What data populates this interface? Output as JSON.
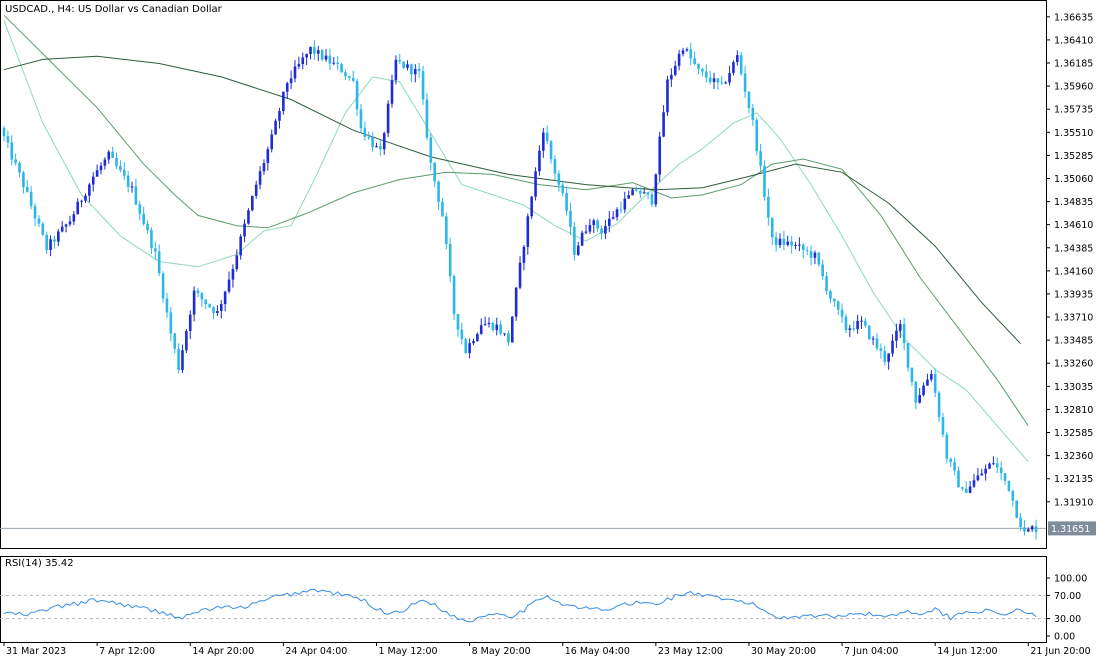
{
  "header": {
    "symbol_label": "USDCAD., H4:  US Dollar vs Canadian Dollar"
  },
  "colors": {
    "bull_candle": "#1e2bd6",
    "bear_candle": "#2bb7e8",
    "ma_fast": "#8fd9b6",
    "ma_mid": "#5c9c6a",
    "ma_slow": "#2f5c3a",
    "rsi_line": "#3a8ee6",
    "price_tag_bg": "#7f8c9a",
    "axis_text": "#000000"
  },
  "chart_data": [
    {
      "type": "candlestick",
      "title": "USDCAD., H4:  US Dollar vs Canadian Dollar",
      "y_ticks": [
        "1.36635",
        "1.36410",
        "1.36185",
        "1.35960",
        "1.35735",
        "1.35510",
        "1.35285",
        "1.35060",
        "1.34835",
        "1.34610",
        "1.34385",
        "1.34160",
        "1.33935",
        "1.33710",
        "1.33485",
        "1.33260",
        "1.33035",
        "1.32810",
        "1.32585",
        "1.32360",
        "1.32135",
        "1.31910"
      ],
      "ylim": [
        1.3146,
        1.3676
      ],
      "x_tick_labels": [
        "31 Mar 2023",
        "7 Apr 12:00",
        "14 Apr 20:00",
        "24 Apr 04:00",
        "1 May 12:00",
        "8 May 20:00",
        "16 May 04:00",
        "23 May 12:00",
        "30 May 20:00",
        "7 Jun 04:00",
        "14 Jun 12:00",
        "21 Jun 20:00"
      ],
      "x_tick_bars": [
        0,
        24,
        48,
        72,
        96,
        120,
        144,
        168,
        192,
        216,
        240,
        264
      ],
      "current_price": "1.31651",
      "current_price_value": 1.31651,
      "price_path": [
        [
          0,
          1.3555
        ],
        [
          6,
          1.35
        ],
        [
          12,
          1.3438
        ],
        [
          18,
          1.3465
        ],
        [
          24,
          1.3508
        ],
        [
          28,
          1.3528
        ],
        [
          34,
          1.3495
        ],
        [
          40,
          1.3432
        ],
        [
          44,
          1.3355
        ],
        [
          46,
          1.3322
        ],
        [
          50,
          1.3395
        ],
        [
          56,
          1.3375
        ],
        [
          60,
          1.342
        ],
        [
          66,
          1.35
        ],
        [
          70,
          1.3545
        ],
        [
          74,
          1.36
        ],
        [
          80,
          1.3632
        ],
        [
          88,
          1.3612
        ],
        [
          91,
          1.36
        ],
        [
          93,
          1.3555
        ],
        [
          98,
          1.353
        ],
        [
          102,
          1.362
        ],
        [
          108,
          1.3608
        ],
        [
          111,
          1.352
        ],
        [
          114,
          1.347
        ],
        [
          117,
          1.3375
        ],
        [
          120,
          1.3338
        ],
        [
          124,
          1.3365
        ],
        [
          128,
          1.3362
        ],
        [
          131,
          1.3348
        ],
        [
          134,
          1.342
        ],
        [
          137,
          1.349
        ],
        [
          140,
          1.3555
        ],
        [
          142,
          1.3525
        ],
        [
          146,
          1.3475
        ],
        [
          148,
          1.3435
        ],
        [
          152,
          1.3465
        ],
        [
          155,
          1.3455
        ],
        [
          160,
          1.348
        ],
        [
          164,
          1.3495
        ],
        [
          168,
          1.3485
        ],
        [
          172,
          1.36
        ],
        [
          176,
          1.3635
        ],
        [
          180,
          1.361
        ],
        [
          186,
          1.3595
        ],
        [
          190,
          1.3625
        ],
        [
          194,
          1.356
        ],
        [
          199,
          1.3445
        ],
        [
          204,
          1.3442
        ],
        [
          210,
          1.343
        ],
        [
          214,
          1.339
        ],
        [
          218,
          1.336
        ],
        [
          222,
          1.3365
        ],
        [
          228,
          1.333
        ],
        [
          232,
          1.3362
        ],
        [
          236,
          1.329
        ],
        [
          240,
          1.3318
        ],
        [
          244,
          1.3235
        ],
        [
          248,
          1.32
        ],
        [
          252,
          1.3215
        ],
        [
          256,
          1.323
        ],
        [
          260,
          1.3205
        ],
        [
          262,
          1.318
        ],
        [
          264,
          1.316
        ],
        [
          266,
          1.3165
        ]
      ],
      "series": [
        {
          "name": "",
          "kind": "moving-average",
          "values": [
            [
              0,
              1.366
            ],
            [
              10,
              1.356
            ],
            [
              20,
              1.349
            ],
            [
              30,
              1.345
            ],
            [
              40,
              1.3425
            ],
            [
              50,
              1.342
            ],
            [
              60,
              1.3432
            ],
            [
              67,
              1.3455
            ],
            [
              74,
              1.346
            ],
            [
              80,
              1.3505
            ],
            [
              88,
              1.357
            ],
            [
              95,
              1.3605
            ],
            [
              102,
              1.36
            ],
            [
              110,
              1.355
            ],
            [
              118,
              1.35
            ],
            [
              126,
              1.349
            ],
            [
              134,
              1.348
            ],
            [
              142,
              1.346
            ],
            [
              150,
              1.3445
            ],
            [
              158,
              1.3462
            ],
            [
              166,
              1.3492
            ],
            [
              174,
              1.352
            ],
            [
              180,
              1.3535
            ],
            [
              188,
              1.356
            ],
            [
              194,
              1.357
            ],
            [
              200,
              1.3545
            ],
            [
              208,
              1.35
            ],
            [
              216,
              1.345
            ],
            [
              224,
              1.3395
            ],
            [
              232,
              1.335
            ],
            [
              240,
              1.332
            ],
            [
              248,
              1.33
            ],
            [
              256,
              1.3265
            ],
            [
              264,
              1.323
            ]
          ]
        },
        {
          "name": "",
          "kind": "moving-average",
          "values": [
            [
              0,
              1.3665
            ],
            [
              12,
              1.362
            ],
            [
              24,
              1.3575
            ],
            [
              36,
              1.352
            ],
            [
              44,
              1.349
            ],
            [
              50,
              1.347
            ],
            [
              60,
              1.346
            ],
            [
              68,
              1.3458
            ],
            [
              78,
              1.3472
            ],
            [
              90,
              1.3492
            ],
            [
              102,
              1.3505
            ],
            [
              114,
              1.3512
            ],
            [
              126,
              1.351
            ],
            [
              138,
              1.35
            ],
            [
              150,
              1.3495
            ],
            [
              162,
              1.3502
            ],
            [
              172,
              1.3487
            ],
            [
              180,
              1.349
            ],
            [
              190,
              1.35
            ],
            [
              198,
              1.352
            ],
            [
              206,
              1.3525
            ],
            [
              216,
              1.3515
            ],
            [
              226,
              1.347
            ],
            [
              236,
              1.341
            ],
            [
              246,
              1.336
            ],
            [
              256,
              1.331
            ],
            [
              264,
              1.3265
            ]
          ]
        },
        {
          "name": "",
          "kind": "moving-average",
          "values": [
            [
              0,
              1.3612
            ],
            [
              10,
              1.3622
            ],
            [
              24,
              1.3625
            ],
            [
              40,
              1.3618
            ],
            [
              56,
              1.3605
            ],
            [
              74,
              1.3583
            ],
            [
              90,
              1.3553
            ],
            [
              110,
              1.3527
            ],
            [
              130,
              1.351
            ],
            [
              150,
              1.35
            ],
            [
              168,
              1.3495
            ],
            [
              180,
              1.3497
            ],
            [
              192,
              1.3508
            ],
            [
              204,
              1.352
            ],
            [
              216,
              1.3512
            ],
            [
              228,
              1.3482
            ],
            [
              240,
              1.344
            ],
            [
              252,
              1.3385
            ],
            [
              262,
              1.3345
            ]
          ]
        }
      ]
    },
    {
      "type": "line",
      "title": "RSI(14) 35.42",
      "label": "RSI(14) 35.42",
      "y_ticks": [
        "100.00",
        "70.00",
        "30.00",
        "0.00"
      ],
      "levels": [
        70,
        30
      ],
      "ylim": [
        0,
        100
      ],
      "x": [
        0,
        6,
        12,
        18,
        24,
        28,
        34,
        40,
        44,
        46,
        50,
        56,
        60,
        66,
        70,
        74,
        80,
        88,
        91,
        93,
        98,
        102,
        108,
        111,
        114,
        117,
        120,
        124,
        128,
        131,
        134,
        137,
        140,
        142,
        146,
        148,
        152,
        155,
        160,
        164,
        168,
        172,
        176,
        180,
        186,
        190,
        194,
        199,
        204,
        210,
        214,
        218,
        222,
        228,
        232,
        236,
        240,
        244,
        248,
        252,
        256,
        260,
        262,
        264,
        266
      ],
      "values": [
        40,
        36,
        48,
        55,
        62,
        58,
        50,
        42,
        35,
        30,
        43,
        50,
        47,
        58,
        68,
        72,
        80,
        70,
        65,
        60,
        40,
        42,
        62,
        55,
        40,
        30,
        26,
        36,
        40,
        34,
        45,
        58,
        72,
        60,
        52,
        48,
        47,
        44,
        55,
        57,
        55,
        66,
        75,
        70,
        62,
        60,
        52,
        32,
        34,
        36,
        33,
        40,
        38,
        34,
        42,
        40,
        45,
        32,
        42,
        44,
        38,
        40,
        48,
        35,
        36
      ]
    }
  ]
}
